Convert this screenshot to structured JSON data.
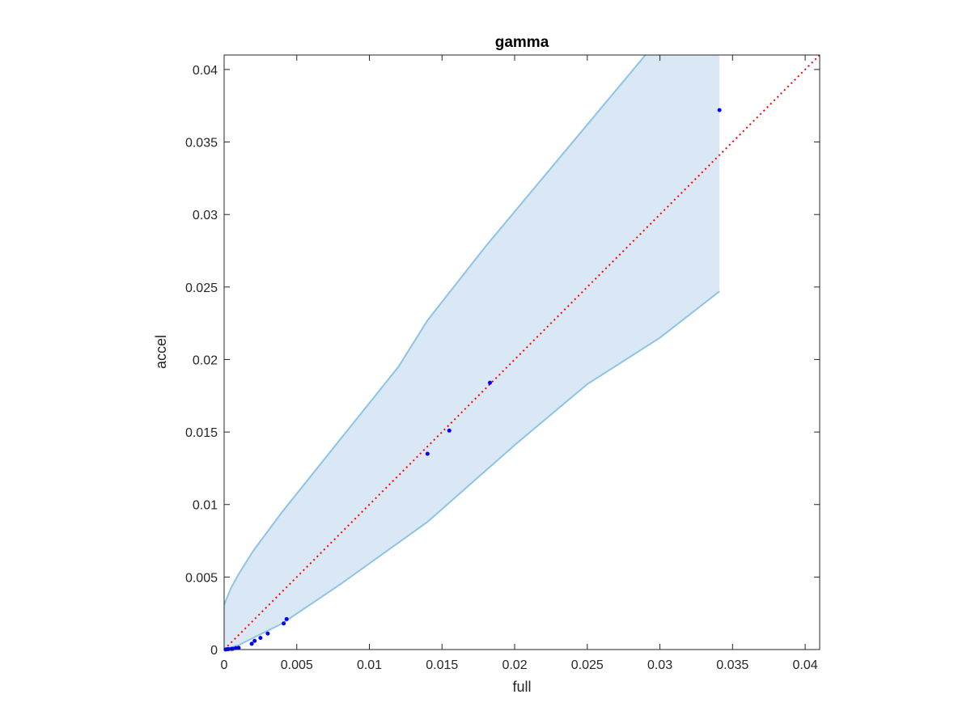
{
  "chart_data": {
    "type": "scatter",
    "title": "gamma",
    "xlabel": "full",
    "ylabel": "accel",
    "xlim": [
      0,
      0.041
    ],
    "ylim": [
      0,
      0.041
    ],
    "x_ticks": [
      0,
      0.005,
      0.01,
      0.015,
      0.02,
      0.025,
      0.03,
      0.035,
      0.04
    ],
    "x_tick_labels": [
      "0",
      "0.005",
      "0.01",
      "0.015",
      "0.02",
      "0.025",
      "0.03",
      "0.035",
      "0.04"
    ],
    "y_ticks": [
      0,
      0.005,
      0.01,
      0.015,
      0.02,
      0.025,
      0.03,
      0.035,
      0.04
    ],
    "y_tick_labels": [
      "0",
      "0.005",
      "0.01",
      "0.015",
      "0.02",
      "0.025",
      "0.03",
      "0.035",
      "0.04"
    ],
    "grid": false,
    "box": true,
    "colors": {
      "band_fill": "#d9e8f4",
      "band_edge": "#8ec3e6",
      "points": "#0000ff",
      "reference": "#ff0000",
      "axes": "#262626"
    },
    "band": {
      "upper": [
        [
          0,
          0.0031
        ],
        [
          0.0005,
          0.0043
        ],
        [
          0.001,
          0.0052
        ],
        [
          0.002,
          0.0068
        ],
        [
          0.004,
          0.0095
        ],
        [
          0.008,
          0.0145
        ],
        [
          0.012,
          0.0195
        ],
        [
          0.014,
          0.0227
        ],
        [
          0.018,
          0.0278
        ],
        [
          0.025,
          0.0362
        ],
        [
          0.029,
          0.041
        ]
      ],
      "upper_cutoff": 0.0341,
      "lower": [
        [
          0,
          0
        ],
        [
          0.001,
          0.0003
        ],
        [
          0.002,
          0.0008
        ],
        [
          0.004,
          0.0018
        ],
        [
          0.008,
          0.0045
        ],
        [
          0.014,
          0.0088
        ],
        [
          0.02,
          0.0141
        ],
        [
          0.025,
          0.0183
        ],
        [
          0.03,
          0.0215
        ],
        [
          0.0341,
          0.0247
        ]
      ]
    },
    "series": [
      {
        "points": [
          [
            0.0001,
            0.0
          ],
          [
            0.0002,
            2e-05
          ],
          [
            0.0003,
            3e-05
          ],
          [
            0.0005,
            4e-05
          ],
          [
            0.0006,
            5e-05
          ],
          [
            0.0008,
            0.0001
          ],
          [
            0.001,
            0.00012
          ],
          [
            0.0019,
            0.0004
          ],
          [
            0.0021,
            0.0006
          ],
          [
            0.0025,
            0.0008
          ],
          [
            0.003,
            0.0011
          ],
          [
            0.0041,
            0.0018
          ],
          [
            0.0043,
            0.0021
          ],
          [
            0.014,
            0.0135
          ],
          [
            0.0155,
            0.0151
          ],
          [
            0.0183,
            0.0184
          ],
          [
            0.0341,
            0.0372
          ]
        ]
      }
    ],
    "reference_line": {
      "style": "dotted",
      "from": [
        0,
        0
      ],
      "to": [
        0.041,
        0.041
      ]
    }
  }
}
